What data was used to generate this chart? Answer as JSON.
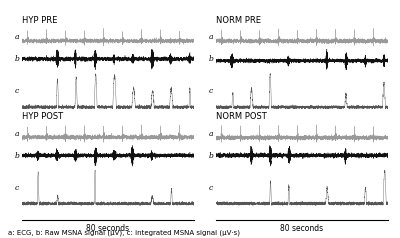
{
  "panels": [
    {
      "title": "HYP PRE",
      "col": 0,
      "row": 0,
      "burst_rate": 0.7
    },
    {
      "title": "NORM PRE",
      "col": 1,
      "row": 0,
      "burst_rate": 0.65
    },
    {
      "title": "HYP POST",
      "col": 0,
      "row": 1,
      "burst_rate": 0.5
    },
    {
      "title": "NORM POST",
      "col": 1,
      "row": 1,
      "burst_rate": 0.4
    }
  ],
  "trace_labels": [
    "a",
    "b",
    "c"
  ],
  "x_label": "80 seconds",
  "caption": "a: ECG, b: Raw MSNA signal (μV), c: integrated MSNA signal (μV·s)",
  "bg_color": "#ffffff",
  "trace_color_a": "#999999",
  "trace_color_b": "#111111",
  "trace_color_c": "#555555",
  "title_fontsize": 6.0,
  "label_fontsize": 5.5,
  "caption_fontsize": 5.0,
  "xlabel_fontsize": 5.5,
  "n_points": 4000,
  "fs": 500
}
